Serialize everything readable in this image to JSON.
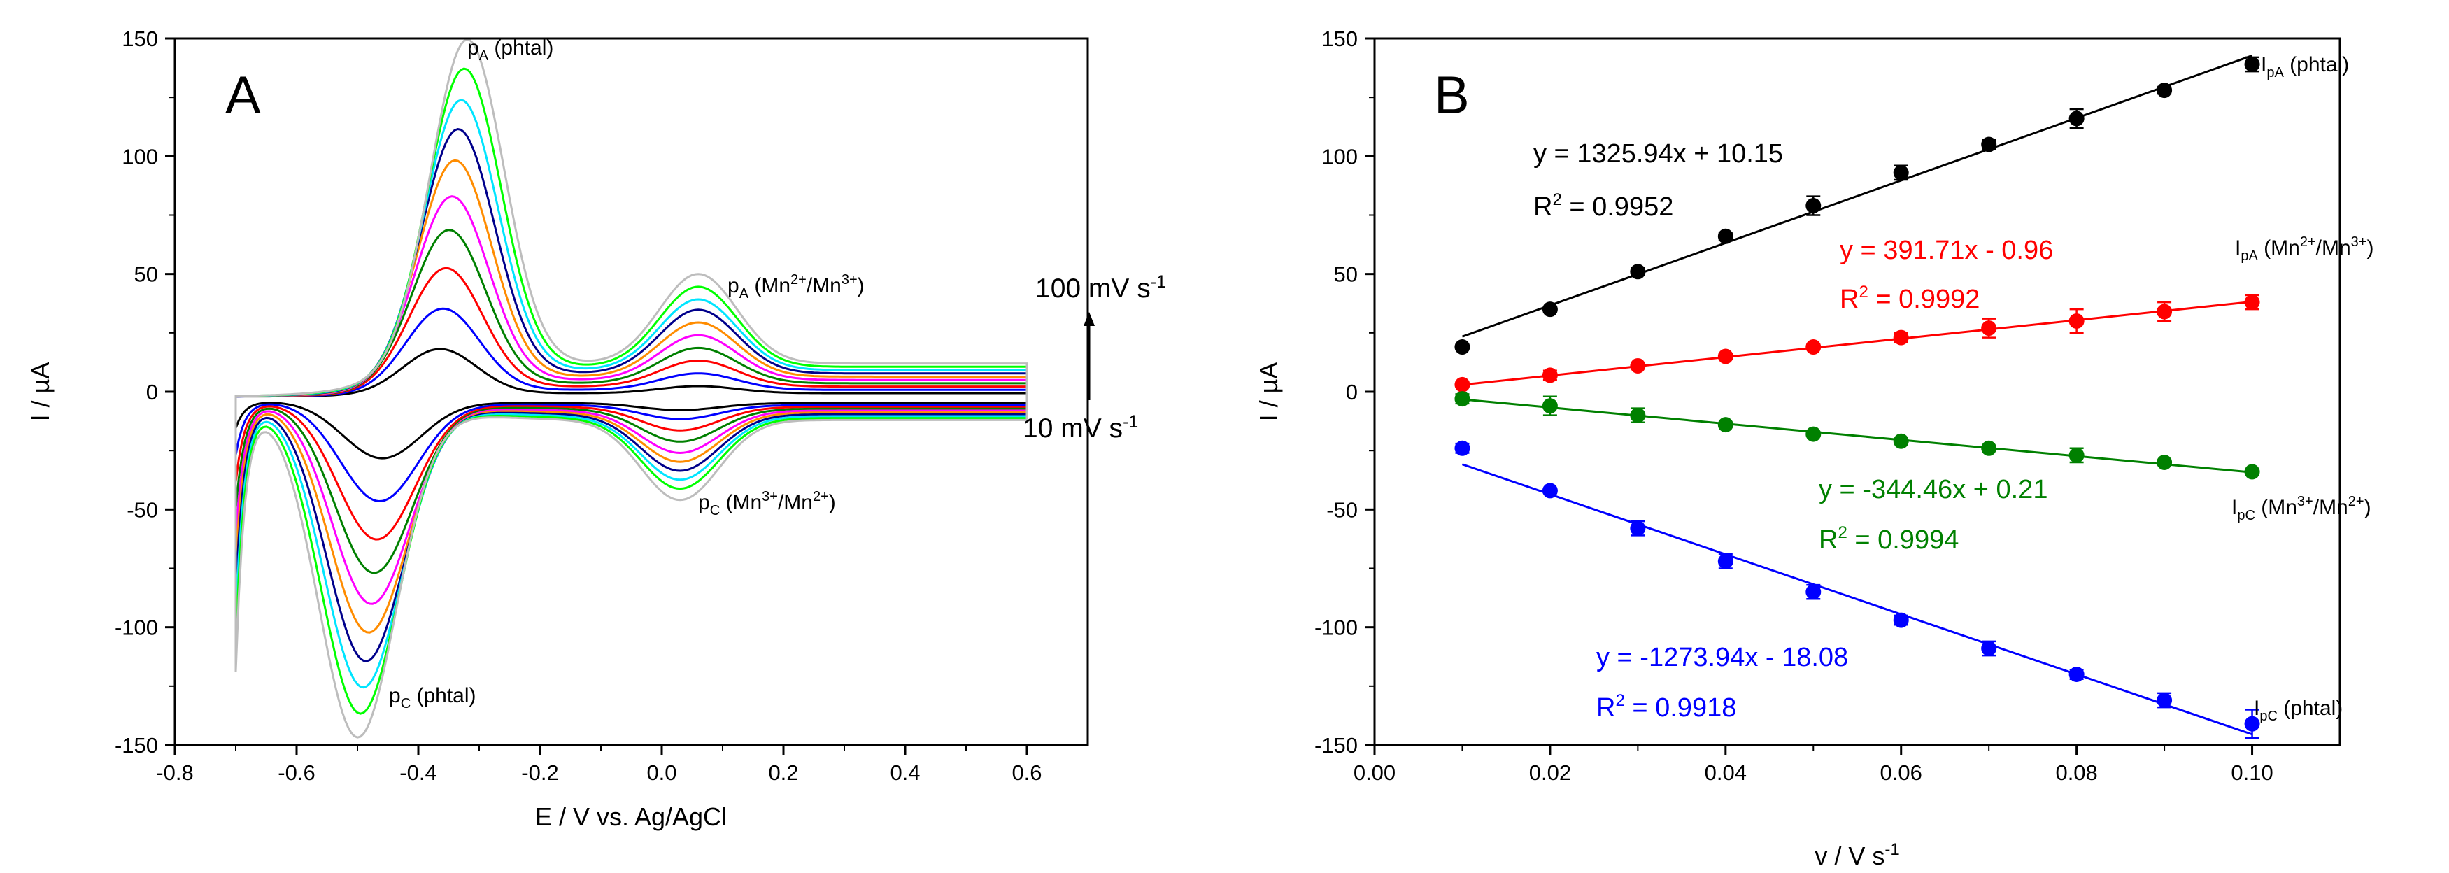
{
  "chart_data": [
    {
      "panel": "A",
      "type": "line",
      "title": "",
      "xlabel": "E / V vs. Ag/AgCl",
      "ylabel": "I / µA",
      "xlim": [
        -0.8,
        0.7
      ],
      "ylim": [
        -150,
        150
      ],
      "xticks": [
        -0.8,
        -0.6,
        -0.4,
        -0.2,
        0.0,
        0.2,
        0.4,
        0.6
      ],
      "xtick_labels": [
        "-0.8",
        "-0.6",
        "-0.4",
        "-0.2",
        "0.0",
        "0.2",
        "0.4",
        "0.6"
      ],
      "yticks": [
        -150,
        -100,
        -50,
        0,
        50,
        100,
        150
      ],
      "ytick_labels": [
        "-150",
        "-100",
        "-50",
        "0",
        "50",
        "100",
        "150"
      ],
      "scan_rates_mV_s": [
        10,
        20,
        30,
        40,
        50,
        60,
        70,
        80,
        90,
        100
      ],
      "series_colors": [
        "#000000",
        "#0000ff",
        "#ff0000",
        "#008000",
        "#ff00ff",
        "#ff8c00",
        "#00008b",
        "#00e5ff",
        "#00ff00",
        "#bdbdbd"
      ],
      "peak_anodic_phtal_uA": [
        19,
        35,
        51,
        66,
        79,
        93,
        105,
        116,
        128,
        139
      ],
      "peak_cathodic_phtal_uA": [
        -24,
        -42,
        -58,
        -72,
        -85,
        -97,
        -109,
        -120,
        -131,
        -141
      ],
      "peak_anodic_mn_uA": [
        3,
        7,
        11,
        15,
        19,
        23,
        27,
        30,
        34,
        38
      ],
      "peak_cathodic_mn_uA": [
        -3,
        -6,
        -10,
        -14,
        -18,
        -21,
        -24,
        -27,
        -30,
        -34
      ],
      "annotations": {
        "pa_phtal": {
          "main": "p",
          "sub": "A",
          "rest": " (phtal)"
        },
        "pa_mn": {
          "main": "p",
          "sub": "A",
          "rest": " (Mn",
          "sup1": "2+",
          "mid": "/Mn",
          "sup2": "3+",
          "end": ")"
        },
        "pc_mn": {
          "main": "p",
          "sub": "C",
          "rest": " (Mn",
          "sup1": "3+",
          "mid": "/Mn",
          "sup2": "2+",
          "end": ")"
        },
        "pc_phtal": {
          "main": "p",
          "sub": "C",
          "rest": " (phtal)"
        },
        "scan_high": {
          "text": "100 mV s",
          "sup": "-1"
        },
        "scan_low": {
          "text": "10 mV s",
          "sup": "-1"
        }
      }
    },
    {
      "panel": "B",
      "type": "scatter",
      "title": "",
      "xlabel": "v / V s",
      "xlabel_sup": "-1",
      "ylabel": "I / µA",
      "xlim": [
        0.0,
        0.11
      ],
      "ylim": [
        -150,
        150
      ],
      "xticks": [
        0.0,
        0.02,
        0.04,
        0.06,
        0.08,
        0.1
      ],
      "xtick_labels": [
        "0.00",
        "0.02",
        "0.04",
        "0.06",
        "0.08",
        "0.10"
      ],
      "yticks": [
        -150,
        -100,
        -50,
        0,
        50,
        100,
        150
      ],
      "ytick_labels": [
        "-150",
        "-100",
        "-50",
        "0",
        "50",
        "100",
        "150"
      ],
      "x": [
        0.01,
        0.02,
        0.03,
        0.04,
        0.05,
        0.06,
        0.07,
        0.08,
        0.09,
        0.1
      ],
      "series": [
        {
          "name": "IpA (phtal)",
          "color": "#000000",
          "values": [
            19,
            35,
            51,
            66,
            79,
            93,
            105,
            116,
            128,
            139
          ],
          "errors": [
            1,
            1,
            1.5,
            1.5,
            4,
            3,
            2,
            4,
            1.5,
            3
          ],
          "fit": {
            "slope": 1325.94,
            "intercept": 10.15
          },
          "equation": "y = 1325.94x + 10.15",
          "r2_label": "R",
          "r2_sup": "2",
          "r2_value": " = 0.9952",
          "label": {
            "main": "I",
            "sub": "pA",
            "rest": " (phtal)"
          }
        },
        {
          "name": "IpA (Mn2+/Mn3+)",
          "color": "#ff0000",
          "values": [
            3,
            7,
            11,
            15,
            19,
            23,
            27,
            30,
            34,
            38
          ],
          "errors": [
            1,
            2,
            1,
            1,
            1,
            2,
            4,
            5,
            4,
            3
          ],
          "fit": {
            "slope": 391.71,
            "intercept": -0.96
          },
          "equation": "y = 391.71x - 0.96",
          "r2_label": "R",
          "r2_sup": "2",
          "r2_value": " = 0.9992",
          "label": {
            "main": "I",
            "sub": "pA",
            "rest": " (Mn",
            "sup1": "2+",
            "mid": "/Mn",
            "sup2": "3+",
            "end": ")"
          }
        },
        {
          "name": "IpC (Mn3+/Mn2+)",
          "color": "#008000",
          "values": [
            -3,
            -6,
            -10,
            -14,
            -18,
            -21,
            -24,
            -27,
            -30,
            -34
          ],
          "errors": [
            2,
            4,
            3,
            1,
            1,
            1,
            1,
            3,
            1,
            1
          ],
          "fit": {
            "slope": -344.46,
            "intercept": 0.21
          },
          "equation": "y = -344.46x + 0.21",
          "r2_label": "R",
          "r2_sup": "2",
          "r2_value": " = 0.9994",
          "label": {
            "main": "I",
            "sub": "pC",
            "rest": " (Mn",
            "sup1": "3+",
            "mid": "/Mn",
            "sup2": "2+",
            "end": ")"
          }
        },
        {
          "name": "IpC (phtal)",
          "color": "#0000ff",
          "values": [
            -24,
            -42,
            -58,
            -72,
            -85,
            -97,
            -109,
            -120,
            -131,
            -141
          ],
          "errors": [
            2,
            1,
            3,
            3,
            3,
            2,
            3,
            2,
            3,
            6
          ],
          "fit": {
            "slope": -1273.94,
            "intercept": -18.08
          },
          "equation": "y = -1273.94x - 18.08",
          "r2_label": "R",
          "r2_sup": "2",
          "r2_value": " = 0.9918",
          "label": {
            "main": "I",
            "sub": "pC",
            "rest": " (phtal)"
          }
        }
      ]
    }
  ]
}
